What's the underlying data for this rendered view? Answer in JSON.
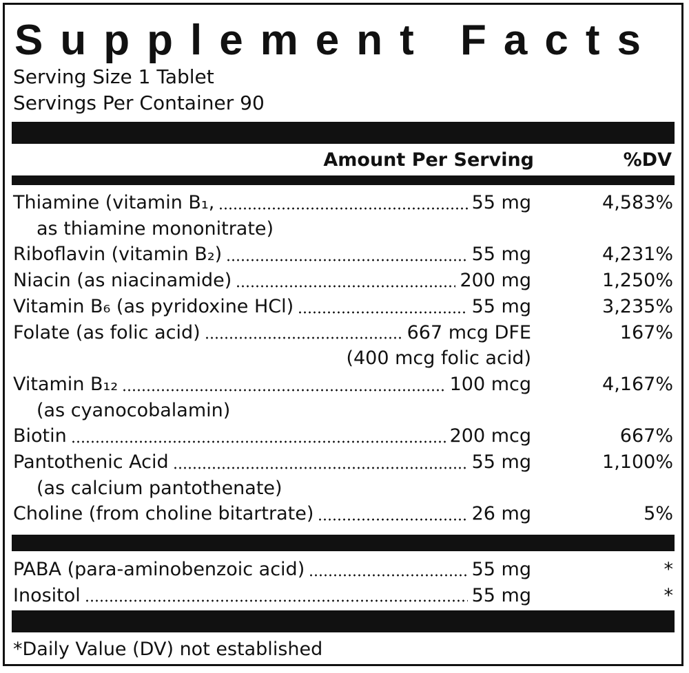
{
  "title": "Supplement Facts",
  "serving_size": "Serving Size 1 Tablet",
  "servings_per_container": "Servings Per Container 90",
  "header": {
    "amount": "Amount Per Serving",
    "dv": "%DV"
  },
  "rows": [
    {
      "name": "Thiamine (vitamin B₁,",
      "amount": "55 mg",
      "dv": "4,583%",
      "detail": "as thiamine mononitrate)"
    },
    {
      "name": "Riboflavin (vitamin B₂)",
      "amount": "55 mg",
      "dv": "4,231%"
    },
    {
      "name": "Niacin (as niacinamide)",
      "amount": "200 mg",
      "dv": "1,250%"
    },
    {
      "name": "Vitamin B₆ (as pyridoxine HCl)",
      "amount": "55 mg",
      "dv": "3,235%"
    },
    {
      "name": "Folate (as folic acid)",
      "amount": "667 mcg DFE",
      "dv": "167%",
      "amount_detail": "(400 mcg folic acid)"
    },
    {
      "name": "Vitamin B₁₂",
      "amount": "100 mcg",
      "dv": "4,167%",
      "detail": "(as cyanocobalamin)"
    },
    {
      "name": "Biotin",
      "amount": "200 mcg",
      "dv": "667%"
    },
    {
      "name": "Pantothenic Acid",
      "amount": "55 mg",
      "dv": "1,100%",
      "detail": "(as calcium pantothenate)"
    },
    {
      "name": "Choline (from choline bitartrate)",
      "amount": "26 mg",
      "dv": "5%"
    }
  ],
  "other_rows": [
    {
      "name": "PABA (para-aminobenzoic acid)",
      "amount": "55 mg",
      "dv": "*"
    },
    {
      "name": "Inositol",
      "amount": "55 mg",
      "dv": "*"
    }
  ],
  "footnote": "*Daily Value (DV) not established"
}
